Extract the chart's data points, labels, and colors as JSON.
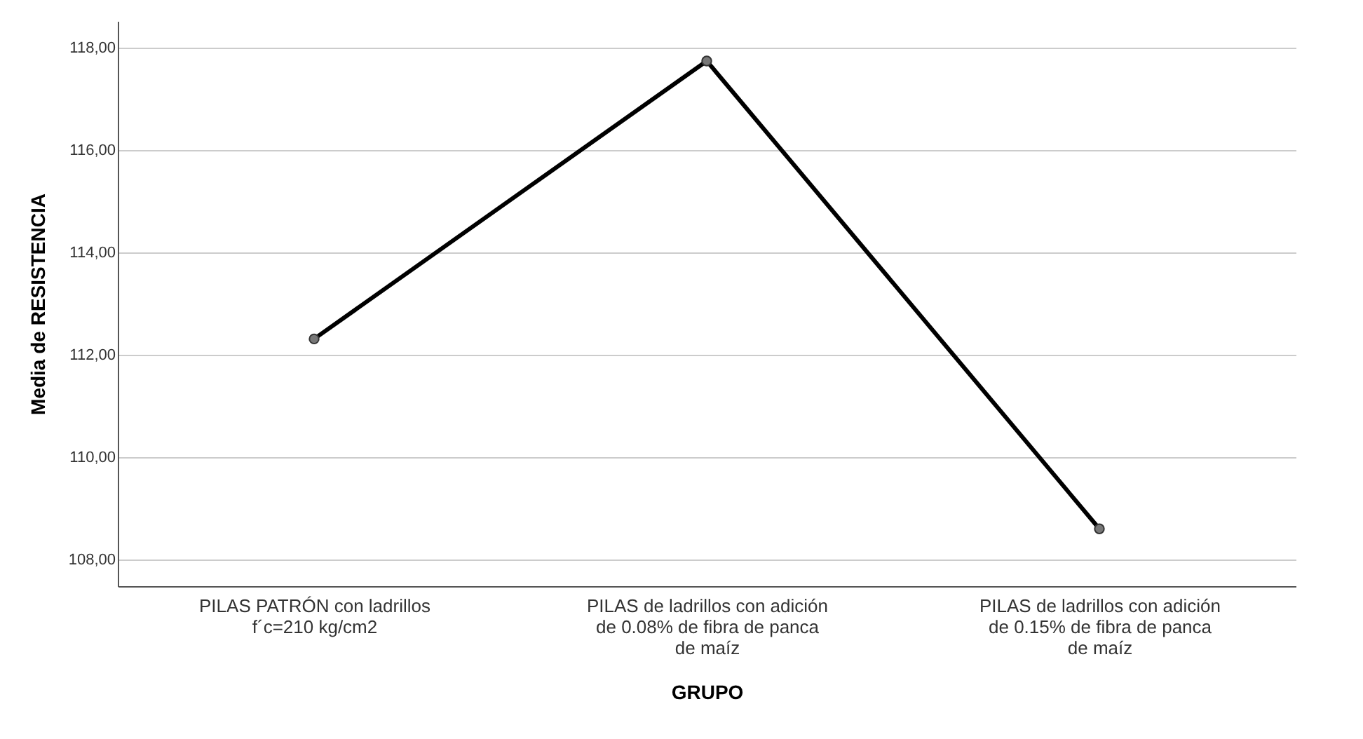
{
  "chart_data": {
    "type": "line",
    "xlabel": "GRUPO",
    "ylabel": "Media de RESISTENCIA",
    "categories": [
      "PILAS PATRÓN con ladrillos\nf´c=210 kg/cm2",
      "PILAS de ladrillos con adición\nde 0.08%  de fibra de panca\nde maíz",
      "PILAS de ladrillos con adición\nde 0.15%  de fibra de panca\nde maíz"
    ],
    "series": [
      {
        "color": "#000000",
        "values": [
          112.31,
          117.74,
          108.6
        ]
      }
    ],
    "ylim": [
      107.48,
      118.52
    ],
    "yticks": [
      {
        "value": 108,
        "label": "108,00"
      },
      {
        "value": 110,
        "label": "110,00"
      },
      {
        "value": 112,
        "label": "112,00"
      },
      {
        "value": 114,
        "label": "114,00"
      },
      {
        "value": 116,
        "label": "116,00"
      },
      {
        "value": 118,
        "label": "118,00"
      }
    ],
    "grid": "y",
    "marker": "circle",
    "line_style": "solid"
  }
}
